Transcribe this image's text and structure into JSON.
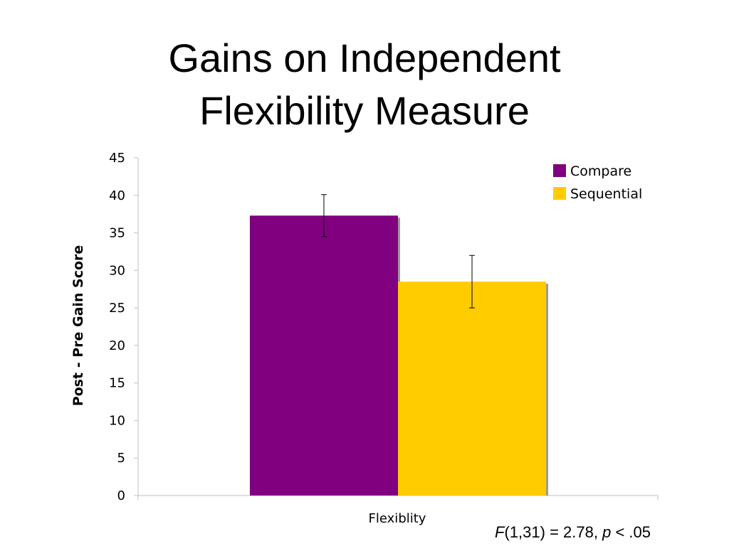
{
  "title": {
    "line1": "Gains on Independent",
    "line2": "Flexibility Measure"
  },
  "chart_data": {
    "type": "bar",
    "title": "",
    "categories": [
      "Flexiblity"
    ],
    "series": [
      {
        "name": "Compare",
        "values": [
          37.3
        ],
        "error": [
          2.8
        ],
        "color": "#800080"
      },
      {
        "name": "Sequential",
        "values": [
          28.5
        ],
        "error": [
          3.5
        ],
        "color": "#FFCC00"
      }
    ],
    "xlabel": "",
    "ylabel": "Post - Pre Gain Score",
    "ylim": [
      0,
      45
    ],
    "yticks": [
      0,
      5,
      10,
      15,
      20,
      25,
      30,
      35,
      40,
      45
    ],
    "grid": false,
    "legend": "top-right"
  },
  "stat_note": {
    "f_symbol": "F",
    "f_args": "(1,31) = 2.78, ",
    "p_symbol": "p",
    "p_rest": " < .05"
  }
}
